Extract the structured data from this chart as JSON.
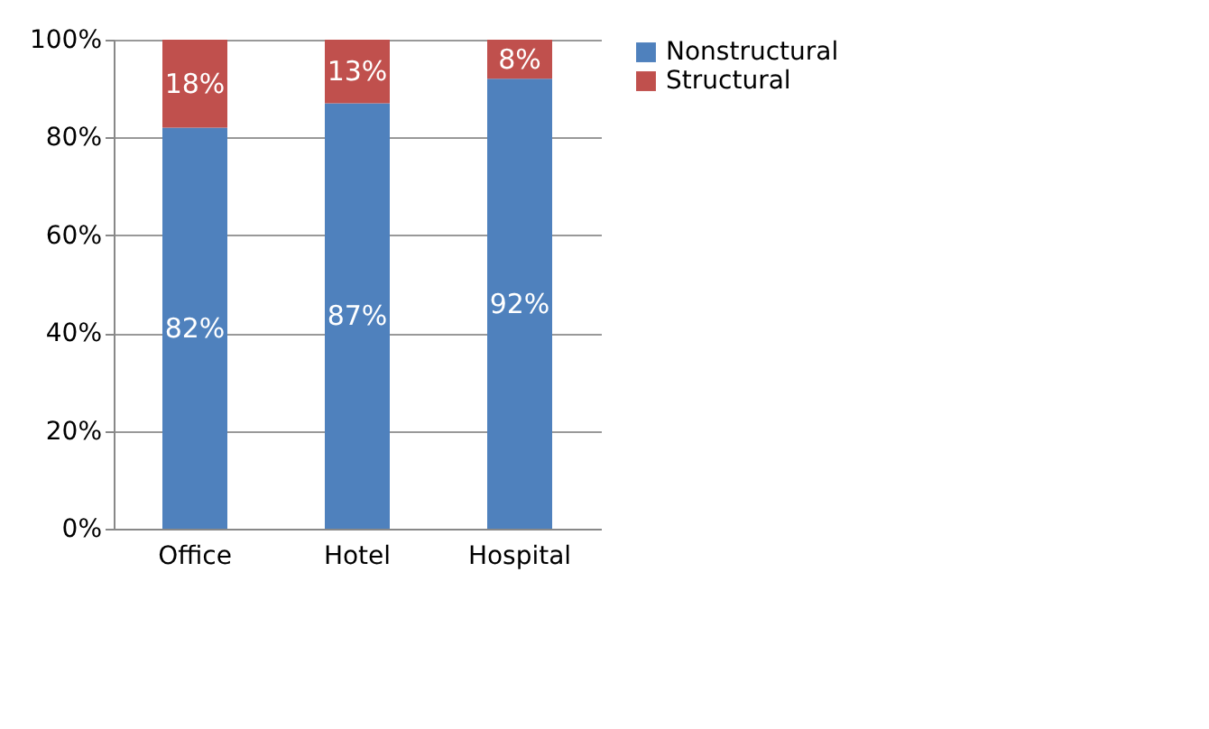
{
  "chart_data": {
    "type": "bar",
    "stacked": true,
    "categories": [
      "Office",
      "Hotel",
      "Hospital"
    ],
    "series": [
      {
        "name": "Nonstructural",
        "color": "#4f81bd",
        "values": [
          82,
          87,
          92
        ],
        "value_labels": [
          "82%",
          "87%",
          "92%"
        ]
      },
      {
        "name": "Structural",
        "color": "#c0504d",
        "values": [
          18,
          13,
          8
        ],
        "value_labels": [
          "18%",
          "13%",
          "8%"
        ]
      }
    ],
    "ylim": [
      0,
      100
    ],
    "yticks": [
      {
        "value": 0,
        "label": "0%"
      },
      {
        "value": 20,
        "label": "20%"
      },
      {
        "value": 40,
        "label": "40%"
      },
      {
        "value": 60,
        "label": "60%"
      },
      {
        "value": 80,
        "label": "80%"
      },
      {
        "value": 100,
        "label": "100%"
      }
    ],
    "grid": "y",
    "legend": "right"
  }
}
